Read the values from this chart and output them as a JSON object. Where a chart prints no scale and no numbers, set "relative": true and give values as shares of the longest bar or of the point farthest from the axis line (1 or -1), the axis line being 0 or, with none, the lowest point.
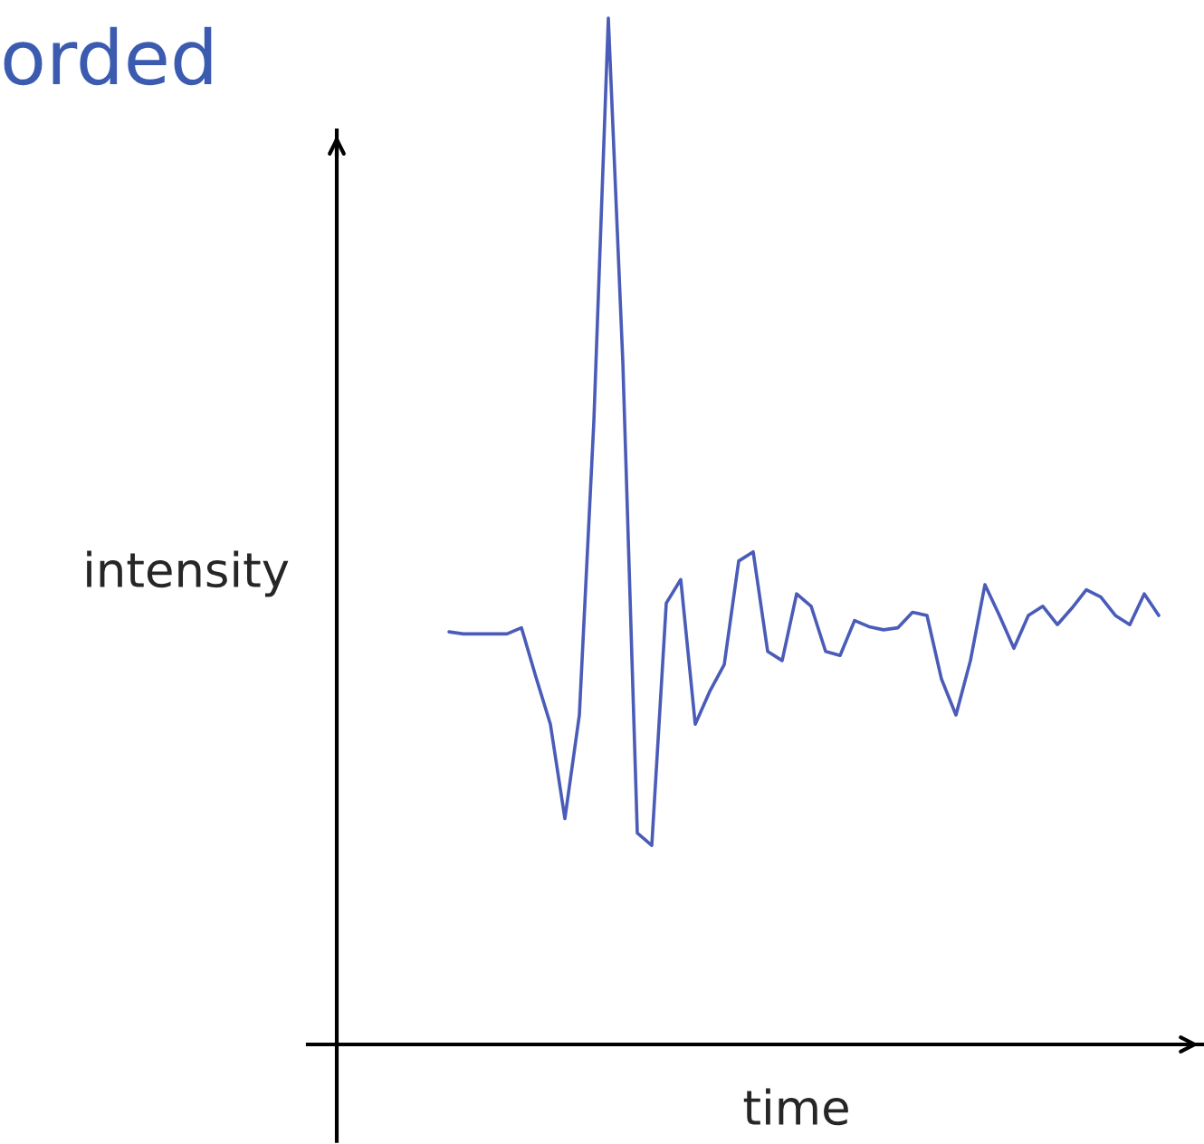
{
  "chart_data": {
    "type": "line",
    "title": "orded",
    "xlabel": "time",
    "ylabel": "intensity",
    "relative": true,
    "tick_labels": false,
    "marker": "none",
    "line_style": "solid",
    "categories": [
      null,
      null,
      null,
      null,
      null,
      null,
      null,
      null,
      null,
      null,
      null,
      null,
      null,
      null,
      null,
      null,
      null,
      null,
      null,
      null,
      null,
      null,
      null,
      null,
      null,
      null,
      null,
      null,
      null,
      null,
      null,
      null,
      null,
      null,
      null,
      null,
      null,
      null,
      null,
      null,
      null,
      null,
      null,
      null,
      null,
      null,
      null,
      null,
      null,
      null
    ],
    "series": [
      {
        "color": "#4a5cb8",
        "values": [
          0.402,
          0.4,
          0.4,
          0.4,
          0.4,
          0.406,
          0.358,
          0.312,
          0.22,
          0.321,
          0.607,
          1,
          0.665,
          0.206,
          0.194,
          0.43,
          0.453,
          0.312,
          0.344,
          0.37,
          0.471,
          0.48,
          0.383,
          0.374,
          0.439,
          0.427,
          0.383,
          0.379,
          0.413,
          0.407,
          0.404,
          0.406,
          0.421,
          0.418,
          0.356,
          0.321,
          0.374,
          0.448,
          0.418,
          0.386,
          0.418,
          0.427,
          0.409,
          0.425,
          0.443,
          0.436,
          0.418,
          0.409,
          0.439,
          0.418
        ]
      }
    ]
  }
}
